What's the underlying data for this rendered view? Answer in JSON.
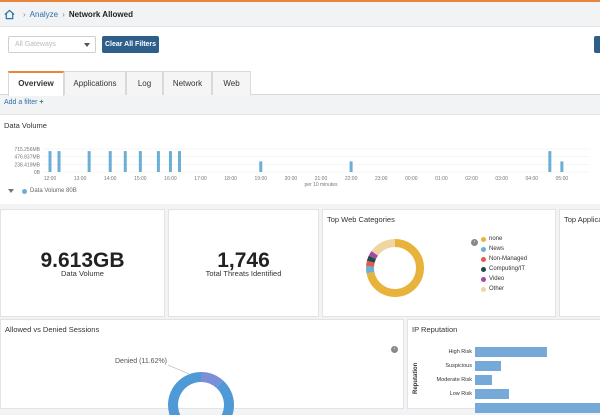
{
  "breadcrumb": {
    "parent": "Analyze",
    "current": "Network Allowed"
  },
  "filters": {
    "gateway_placeholder": "All Gateways",
    "clear_label": "Clear All Filters"
  },
  "tabs": [
    {
      "label": "Overview",
      "active": true
    },
    {
      "label": "Applications"
    },
    {
      "label": "Log"
    },
    {
      "label": "Network"
    },
    {
      "label": "Web"
    }
  ],
  "add_filter": {
    "label": "Add a filter",
    "icon": "plus-icon"
  },
  "data_volume": {
    "title": "Data Volume",
    "legend": "Data Volume 80B",
    "x_caption": "per 10 minutes"
  },
  "chart_data": {
    "type": "bar",
    "yticks": [
      "715.256MB",
      "476.837MB",
      "238.419MB",
      "0B"
    ],
    "xticks": [
      "12:00",
      "13:00",
      "14:00",
      "15:00",
      "16:00",
      "17:00",
      "18:00",
      "19:00",
      "20:00",
      "21:00",
      "22:00",
      "23:00",
      "00:00",
      "01:00",
      "02:00",
      "03:00",
      "04:00",
      "05:00"
    ],
    "x_caption": "per 10 minutes",
    "series": [
      {
        "name": "Data Volume",
        "color": "#6baed6",
        "points": [
          {
            "x": 12.0,
            "v": 650
          },
          {
            "x": 12.3,
            "v": 650
          },
          {
            "x": 13.3,
            "v": 650
          },
          {
            "x": 14.0,
            "v": 650
          },
          {
            "x": 14.5,
            "v": 650
          },
          {
            "x": 15.0,
            "v": 650
          },
          {
            "x": 15.6,
            "v": 650
          },
          {
            "x": 16.0,
            "v": 650
          },
          {
            "x": 16.3,
            "v": 650
          },
          {
            "x": 19.0,
            "v": 330
          },
          {
            "x": 22.0,
            "v": 330
          },
          {
            "x": 4.6,
            "v": 650
          },
          {
            "x": 5.0,
            "v": 330
          }
        ]
      }
    ]
  },
  "stats": {
    "data_volume": {
      "value": "9.613GB",
      "label": "Data Volume"
    },
    "threats": {
      "value": "1,746",
      "label": "Total Threats Identified"
    }
  },
  "web_categories": {
    "title": "Top Web Categories",
    "collapse_icon": "chevron-left-icon",
    "slices": [
      {
        "name": "none",
        "color": "#e8b33a",
        "value": 72
      },
      {
        "name": "News",
        "color": "#6baed6",
        "value": 4
      },
      {
        "name": "Non-Managed",
        "color": "#e05a4f",
        "value": 3
      },
      {
        "name": "Computing/IT",
        "color": "#214a4a",
        "value": 3
      },
      {
        "name": "Video",
        "color": "#a349a4",
        "value": 3
      },
      {
        "name": "Other",
        "color": "#f0d5a0",
        "value": 15
      }
    ]
  },
  "top_apps": {
    "title": "Top Applica"
  },
  "sessions": {
    "title": "Allowed vs Denied Sessions",
    "denied_label": "Denied (11.62%)",
    "denied_pct": 11.62
  },
  "ip_reputation": {
    "title": "IP Reputation",
    "axis_label": "Reputation",
    "bars": [
      {
        "label": "High Risk",
        "value": 100
      },
      {
        "label": "Suspicious",
        "value": 36
      },
      {
        "label": "Moderate Risk",
        "value": 24
      },
      {
        "label": "Low Risk",
        "value": 47
      },
      {
        "label": "",
        "value": 200
      }
    ]
  }
}
